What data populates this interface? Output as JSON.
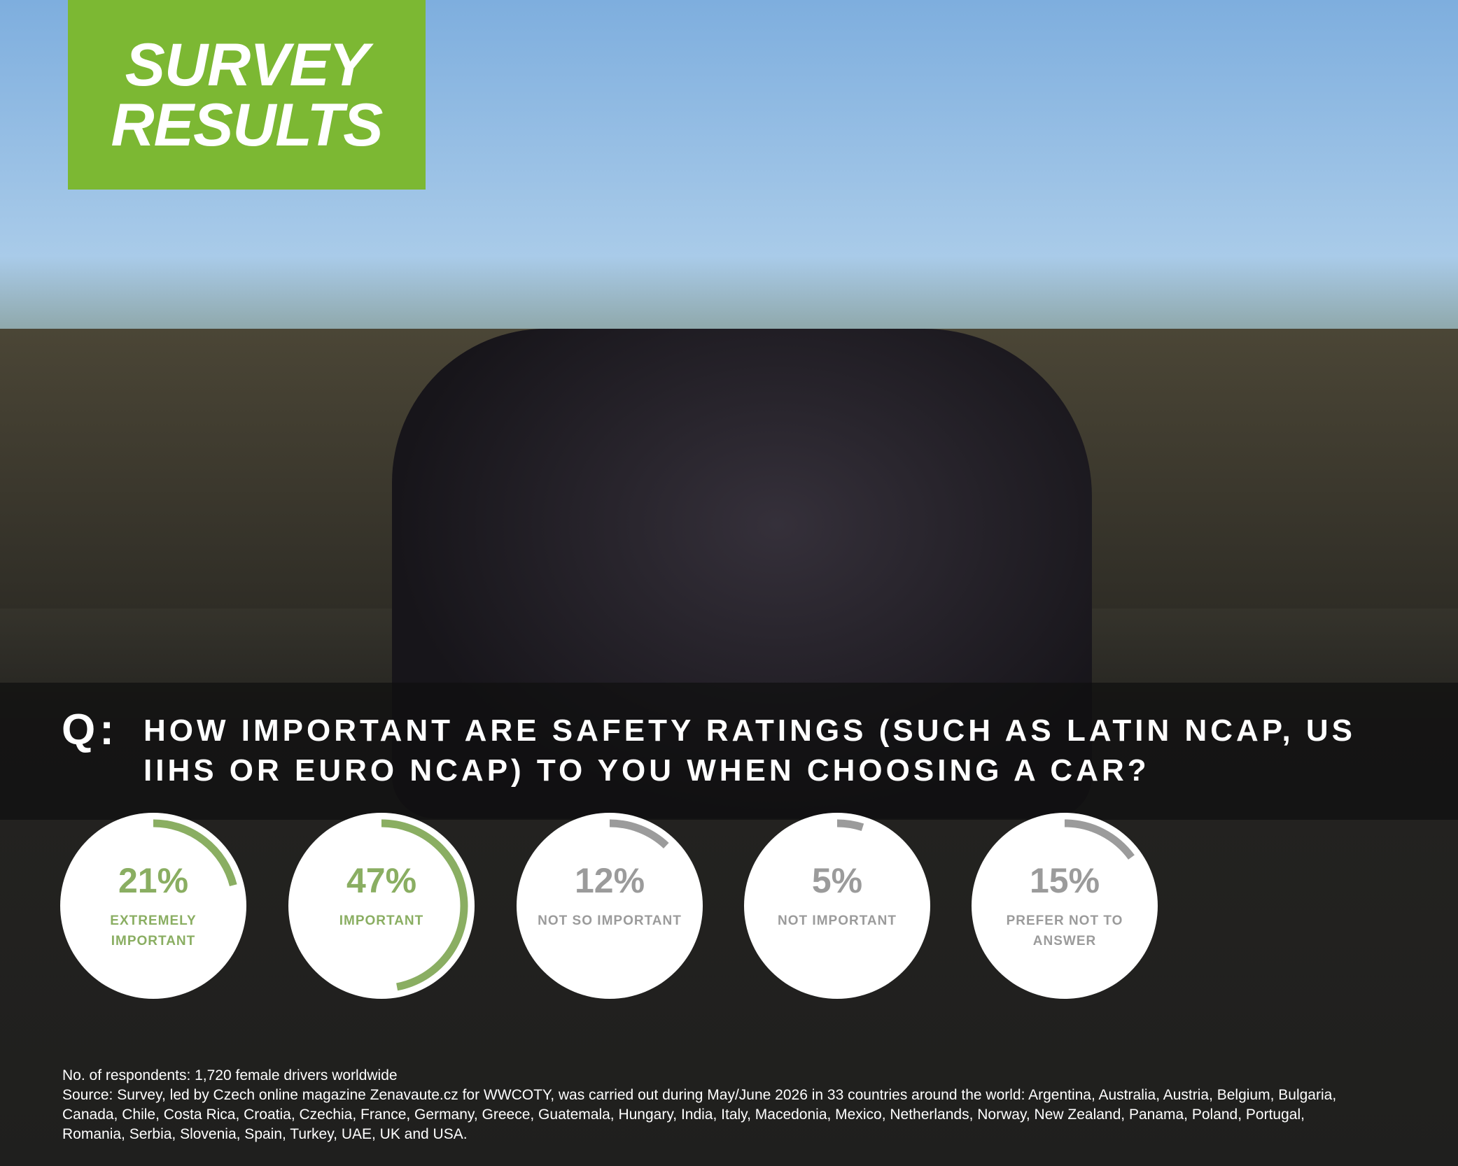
{
  "header": {
    "title_lines": [
      "SURVEY",
      "RESULTS"
    ]
  },
  "chart_data": {
    "type": "radial-progress",
    "question_prefix": "Q:",
    "question": "HOW IMPORTANT ARE SAFETY RATINGS (SUCH AS LATIN NCAP, US IIHS OR EURO NCAP) TO YOU WHEN CHOOSING A CAR?",
    "categories": [
      "EXTREMELY IMPORTANT",
      "IMPORTANT",
      "NOT SO IMPORTANT",
      "NOT IMPORTANT",
      "PREFER NOT TO ANSWER"
    ],
    "values": [
      21,
      47,
      12,
      5,
      15
    ],
    "value_labels": [
      "21%",
      "47%",
      "12%",
      "5%",
      "15%"
    ],
    "colors": [
      "#8aae62",
      "#8aae62",
      "#9b9b9b",
      "#9b9b9b",
      "#9b9b9b"
    ],
    "ylim": [
      0,
      100
    ]
  },
  "footer": {
    "respondents": "No. of respondents: 1,720 female drivers worldwide",
    "source": "Source: Survey, led by Czech online magazine Zenavaute.cz for WWCOTY, was carried out during May/June 2026 in 33 countries around the world: Argentina, Australia, Austria, Belgium, Bulgaria, Canada, Chile, Costa Rica, Croatia, Czechia, France, Germany, Greece, Guatemala, Hungary, India, Italy, Macedonia, Mexico, Netherlands, Norway, New Zealand, Panama, Poland, Portugal, Romania, Serbia, Slovenia, Spain, Turkey, UAE, UK and USA."
  }
}
